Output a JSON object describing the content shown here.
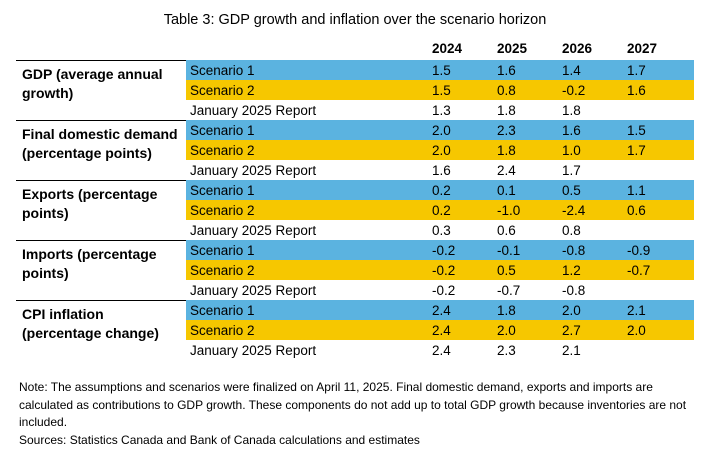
{
  "title": "Table 3: GDP growth and inflation over the scenario horizon",
  "years": [
    "2024",
    "2025",
    "2026",
    "2027"
  ],
  "groups": [
    {
      "label": "GDP (average annual growth)",
      "rows": [
        {
          "name": "Scenario 1",
          "values": [
            "1.5",
            "1.6",
            "1.4",
            "1.7"
          ]
        },
        {
          "name": "Scenario 2",
          "values": [
            "1.5",
            "0.8",
            "-0.2",
            "1.6"
          ]
        },
        {
          "name": "January 2025 Report",
          "values": [
            "1.3",
            "1.8",
            "1.8",
            ""
          ]
        }
      ]
    },
    {
      "label": "Final domestic demand (percentage points)",
      "rows": [
        {
          "name": "Scenario 1",
          "values": [
            "2.0",
            "2.3",
            "1.6",
            "1.5"
          ]
        },
        {
          "name": "Scenario 2",
          "values": [
            "2.0",
            "1.8",
            "1.0",
            "1.7"
          ]
        },
        {
          "name": "January 2025 Report",
          "values": [
            "1.6",
            "2.4",
            "1.7",
            ""
          ]
        }
      ]
    },
    {
      "label": "Exports (percentage points)",
      "rows": [
        {
          "name": "Scenario 1",
          "values": [
            "0.2",
            "0.1",
            "0.5",
            "1.1"
          ]
        },
        {
          "name": "Scenario 2",
          "values": [
            "0.2",
            "-1.0",
            "-2.4",
            "0.6"
          ]
        },
        {
          "name": "January 2025 Report",
          "values": [
            "0.3",
            "0.6",
            "0.8",
            ""
          ]
        }
      ]
    },
    {
      "label": "Imports (percentage points)",
      "rows": [
        {
          "name": "Scenario 1",
          "values": [
            "-0.2",
            "-0.1",
            "-0.8",
            "-0.9"
          ]
        },
        {
          "name": "Scenario 2",
          "values": [
            "-0.2",
            "0.5",
            "1.2",
            "-0.7"
          ]
        },
        {
          "name": "January 2025 Report",
          "values": [
            "-0.2",
            "-0.7",
            "-0.8",
            ""
          ]
        }
      ]
    },
    {
      "label": "CPI inflation (percentage change)",
      "rows": [
        {
          "name": "Scenario 1",
          "values": [
            "2.4",
            "1.8",
            "2.0",
            "2.1"
          ]
        },
        {
          "name": "Scenario 2",
          "values": [
            "2.4",
            "2.0",
            "2.7",
            "2.0"
          ]
        },
        {
          "name": "January 2025 Report",
          "values": [
            "2.4",
            "2.3",
            "2.1",
            ""
          ]
        }
      ]
    }
  ],
  "note": "Note: The assumptions and scenarios were finalized on April 11, 2025. Final domestic demand, exports and imports are calculated as contributions to GDP growth. These components do not add up to total GDP growth because inventories are not included.",
  "sources": "Sources: Statistics Canada and Bank of Canada calculations and estimates",
  "colors": {
    "scenario_1": "#5bb3e0",
    "scenario_2": "#f6c700"
  }
}
